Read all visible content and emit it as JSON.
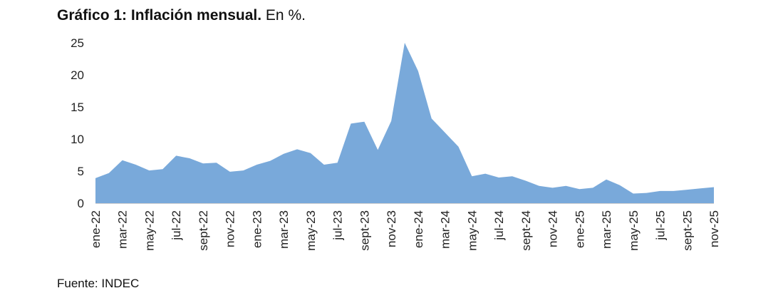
{
  "header": {
    "title_bold": "Gráfico 1: Inflación mensual.",
    "title_rest": "En %."
  },
  "footer": {
    "source": "Fuente: INDEC"
  },
  "colors": {
    "area": "#79a9da"
  },
  "chart_data": {
    "type": "area",
    "title": "Gráfico 1: Inflación mensual. En %.",
    "xlabel": "",
    "ylabel": "",
    "ylim": [
      0,
      25
    ],
    "yticks": [
      0,
      5,
      10,
      15,
      20,
      25
    ],
    "grid": false,
    "legend": "none",
    "x": [
      "ene-22",
      "feb-22",
      "mar-22",
      "abr-22",
      "may-22",
      "jun-22",
      "jul-22",
      "ago-22",
      "sept-22",
      "oct-22",
      "nov-22",
      "dic-22",
      "ene-23",
      "feb-23",
      "mar-23",
      "abr-23",
      "may-23",
      "jun-23",
      "jul-23",
      "ago-23",
      "sept-23",
      "oct-23",
      "nov-23",
      "dic-23",
      "ene-24",
      "feb-24",
      "mar-24",
      "abr-24",
      "may-24",
      "jun-24",
      "jul-24",
      "ago-24",
      "sept-24",
      "oct-24",
      "nov-24",
      "dic-24",
      "ene-25",
      "feb-25",
      "mar-25",
      "abr-25",
      "may-25",
      "jun-25",
      "jul-25",
      "ago-25",
      "sept-25",
      "oct-25",
      "nov-25"
    ],
    "xtick_labels": [
      "ene-22",
      "mar-22",
      "may-22",
      "jul-22",
      "sept-22",
      "nov-22",
      "ene-23",
      "mar-23",
      "may-23",
      "jul-23",
      "sept-23",
      "nov-23",
      "ene-24",
      "mar-24",
      "may-24",
      "jul-24",
      "sept-24",
      "nov-24",
      "ene-25",
      "mar-25",
      "may-25",
      "jul-25",
      "sept-25",
      "nov-25"
    ],
    "series": [
      {
        "values": [
          3.9,
          4.7,
          6.7,
          6.0,
          5.1,
          5.3,
          7.4,
          7.0,
          6.2,
          6.3,
          4.9,
          5.1,
          6.0,
          6.6,
          7.7,
          8.4,
          7.8,
          6.0,
          6.3,
          12.4,
          12.7,
          8.3,
          12.8,
          25.0,
          20.6,
          13.2,
          11.0,
          8.8,
          4.2,
          4.6,
          4.0,
          4.2,
          3.5,
          2.7,
          2.4,
          2.7,
          2.2,
          2.4,
          3.7,
          2.8,
          1.5,
          1.6,
          1.9,
          1.9,
          2.1,
          2.3,
          2.5
        ]
      }
    ]
  }
}
